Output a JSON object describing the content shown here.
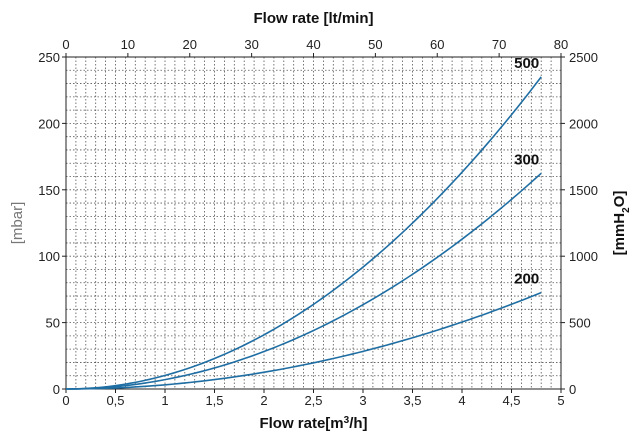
{
  "chart_data": {
    "type": "line",
    "top_axis": {
      "label": "Flow rate [lt/min]",
      "ticks": [
        "0",
        "10",
        "20",
        "30",
        "40",
        "50",
        "60",
        "70",
        "80"
      ],
      "range": [
        0,
        80
      ]
    },
    "x_axis": {
      "label_main": "Flow rate[m",
      "label_sup": "3",
      "label_end": "/h]",
      "ticks": [
        "0",
        "0,5",
        "1",
        "1,5",
        "2",
        "2,5",
        "3",
        "3,5",
        "4",
        "4,5",
        "5"
      ],
      "range": [
        0,
        5
      ]
    },
    "y_left": {
      "label": "[mbar]",
      "ticks": [
        "0",
        "50",
        "100",
        "150",
        "200",
        "250"
      ],
      "range": [
        0,
        250
      ]
    },
    "y_right": {
      "label_main": "[mmH",
      "label_sub": "2",
      "label_end": "O]",
      "ticks": [
        "0",
        "500",
        "1000",
        "1500",
        "2000",
        "2500"
      ],
      "range": [
        0,
        2500
      ]
    },
    "grid": true,
    "line_color": "#1f6ea3",
    "series": [
      {
        "name": "500",
        "coef": 10.2,
        "x_max": 4.8,
        "y_end": 235
      },
      {
        "name": "300",
        "coef": 7.05,
        "x_max": 4.8,
        "y_end": 162
      },
      {
        "name": "200",
        "coef": 3.15,
        "x_max": 4.8,
        "y_end": 72.5
      }
    ]
  }
}
